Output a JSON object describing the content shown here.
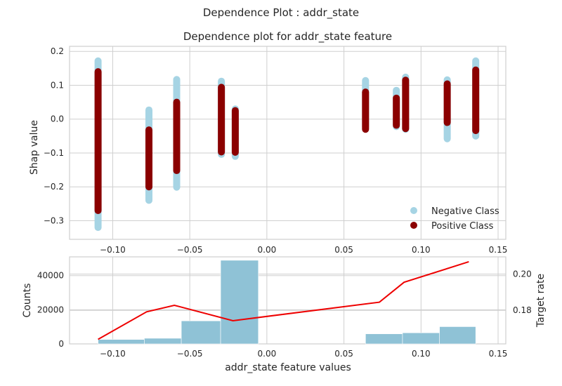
{
  "suptitle": "Dependence Plot : addr_state",
  "colors": {
    "negative": "#a6d4e4",
    "positive": "#8b0000",
    "hist": "#8fc2d6",
    "target": "#ee0000",
    "grid": "#cfcfcf",
    "frame": "#cfcfcf"
  },
  "chart_data": [
    {
      "type": "scatter",
      "title": "Dependence plot for addr_state feature",
      "xlabel": "",
      "ylabel": "Shap value",
      "xlim": [
        -0.128,
        0.155
      ],
      "ylim": [
        -0.355,
        0.215
      ],
      "xticks": [
        -0.1,
        -0.05,
        0.0,
        0.05,
        0.1,
        0.15
      ],
      "xtick_labels": [
        "−0.10",
        "−0.05",
        "0.00",
        "0.05",
        "0.10",
        "0.15"
      ],
      "yticks": [
        -0.3,
        -0.2,
        -0.1,
        0.0,
        0.1,
        0.2
      ],
      "ytick_labels": [
        "−0.3",
        "−0.2",
        "−0.1",
        "0.0",
        "0.1",
        "0.2"
      ],
      "grid": true,
      "legend": "bottom-right",
      "series": [
        {
          "name": "Negative Class",
          "color_key": "negative",
          "columns": [
            {
              "x": -0.1095,
              "min": -0.32,
              "max": 0.172
            },
            {
              "x": -0.0765,
              "min": -0.24,
              "max": 0.027
            },
            {
              "x": -0.0585,
              "min": -0.201,
              "max": 0.117
            },
            {
              "x": -0.0295,
              "min": -0.104,
              "max": 0.112
            },
            {
              "x": -0.0205,
              "min": -0.11,
              "max": 0.03
            },
            {
              "x": 0.064,
              "min": -0.022,
              "max": 0.114
            },
            {
              "x": 0.084,
              "min": -0.022,
              "max": 0.085
            },
            {
              "x": 0.09,
              "min": -0.03,
              "max": 0.124
            },
            {
              "x": 0.117,
              "min": -0.058,
              "max": 0.116
            },
            {
              "x": 0.1355,
              "min": -0.05,
              "max": 0.172
            }
          ]
        },
        {
          "name": "Positive Class",
          "color_key": "positive",
          "columns": [
            {
              "x": -0.1095,
              "min": -0.27,
              "max": 0.14
            },
            {
              "x": -0.0765,
              "min": -0.2,
              "max": -0.032
            },
            {
              "x": -0.0585,
              "min": -0.152,
              "max": 0.05
            },
            {
              "x": -0.0295,
              "min": -0.097,
              "max": 0.094
            },
            {
              "x": -0.0205,
              "min": -0.098,
              "max": 0.025
            },
            {
              "x": 0.064,
              "min": -0.03,
              "max": 0.08
            },
            {
              "x": 0.084,
              "min": -0.018,
              "max": 0.062
            },
            {
              "x": 0.09,
              "min": -0.028,
              "max": 0.115
            },
            {
              "x": 0.117,
              "min": -0.01,
              "max": 0.104
            },
            {
              "x": 0.1355,
              "min": -0.034,
              "max": 0.145
            }
          ]
        }
      ]
    },
    {
      "type": "bar",
      "title": "",
      "xlabel": "addr_state feature values",
      "ylabel": "Counts",
      "ylabel_right": "Target rate",
      "xlim": [
        -0.128,
        0.155
      ],
      "ylim": [
        0,
        51000
      ],
      "ylim_right": [
        0.1615,
        0.2095
      ],
      "xticks": [
        -0.1,
        -0.05,
        0.0,
        0.05,
        0.1,
        0.15
      ],
      "xtick_labels": [
        "−0.10",
        "−0.05",
        "0.00",
        "0.05",
        "0.10",
        "0.15"
      ],
      "yticks": [
        0,
        20000,
        40000
      ],
      "ytick_labels": [
        "0",
        "20000",
        "40000"
      ],
      "yticks_right": [
        0.18,
        0.2
      ],
      "ytick_labels_right": [
        "0.18",
        "0.20"
      ],
      "grid": true,
      "bins": [
        {
          "x0": -0.1095,
          "x1": -0.0795,
          "count": 2600
        },
        {
          "x0": -0.0795,
          "x1": -0.0555,
          "count": 3300
        },
        {
          "x0": -0.0555,
          "x1": -0.03,
          "count": 13500
        },
        {
          "x0": -0.03,
          "x1": -0.0055,
          "count": 49000
        },
        {
          "x0": 0.064,
          "x1": 0.088,
          "count": 5900
        },
        {
          "x0": 0.088,
          "x1": 0.112,
          "count": 6500
        },
        {
          "x0": 0.112,
          "x1": 0.1355,
          "count": 10100
        }
      ],
      "target_rate": {
        "name": "Target rate",
        "x": [
          -0.1095,
          -0.078,
          -0.06,
          -0.022,
          0.073,
          0.089,
          0.131
        ],
        "y": [
          0.164,
          0.1792,
          0.1828,
          0.1743,
          0.1845,
          0.1955,
          0.2068
        ]
      }
    }
  ]
}
